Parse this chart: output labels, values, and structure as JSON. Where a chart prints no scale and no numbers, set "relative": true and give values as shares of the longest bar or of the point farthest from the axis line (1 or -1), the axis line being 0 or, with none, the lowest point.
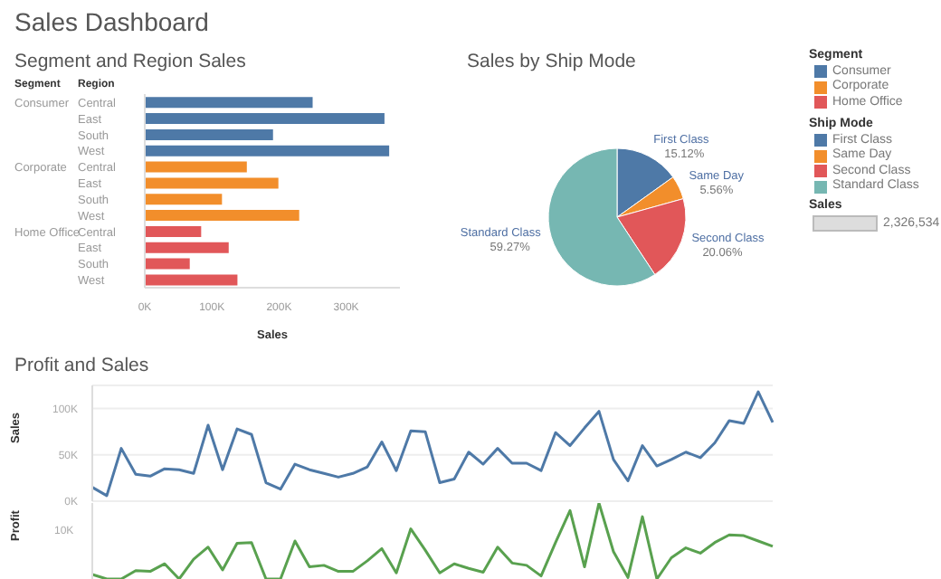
{
  "chart_data": [
    {
      "type": "other",
      "title": "Sales Dashboard"
    },
    {
      "type": "bar",
      "orientation": "horizontal",
      "stacked": true,
      "title": "Segment and Region Sales",
      "xlabel": "Sales",
      "legend": "right",
      "legend_title": "Segment",
      "annotations": [
        "Segment",
        "Region"
      ],
      "categories": [
        "Central",
        "East",
        "South",
        "West",
        "Central",
        "East",
        "South",
        "West",
        "Central",
        "East",
        "South",
        "West"
      ],
      "series": [
        {
          "name": "Consumer",
          "color": "#4e79a7",
          "values": [
            250000,
            357000,
            191000,
            364000,
            null,
            null,
            null,
            null,
            null,
            null,
            null,
            null
          ]
        },
        {
          "name": "Corporate",
          "color": "#f28e2b",
          "values": [
            null,
            null,
            null,
            null,
            152000,
            199000,
            115000,
            230000,
            null,
            null,
            null,
            null
          ]
        },
        {
          "name": "Home Office",
          "color": "#e15759",
          "values": [
            null,
            null,
            null,
            null,
            null,
            null,
            null,
            null,
            84000,
            125000,
            67000,
            138000
          ]
        }
      ],
      "xlim": [
        0,
        380000
      ],
      "xticks": [
        {
          "value": 0,
          "label": "0K"
        },
        {
          "value": 100000,
          "label": "100K"
        },
        {
          "value": 200000,
          "label": "200K"
        },
        {
          "value": 300000,
          "label": "300K"
        }
      ]
    },
    {
      "type": "pie",
      "title": "Sales by Ship Mode",
      "legend": "right",
      "legend_title": "Ship Mode",
      "categories": [
        "First Class",
        "Same Day",
        "Second Class",
        "Standard Class"
      ],
      "values": [
        15.12,
        5.56,
        20.06,
        59.27
      ],
      "colors": [
        "#4e79a7",
        "#f28e2b",
        "#e15759",
        "#76b7b2"
      ],
      "value_labels": [
        "15.12%",
        "5.56%",
        "20.06%",
        "59.27%"
      ]
    },
    {
      "type": "other",
      "title": "Sales",
      "annotations": [
        "2,326,534"
      ]
    },
    {
      "type": "line",
      "title": "Profit and Sales",
      "ylabel": "Sales",
      "tick_labels": "y",
      "grid": "y",
      "categories": [
        null,
        null,
        null,
        null,
        null,
        null,
        null,
        null,
        null,
        null,
        null,
        null,
        null,
        null,
        null,
        null,
        null,
        null,
        null,
        null,
        null,
        null,
        null,
        null,
        null,
        null,
        null,
        null,
        null,
        null,
        null,
        null,
        null,
        null,
        null,
        null,
        null,
        null,
        null,
        null,
        null,
        null,
        null,
        null,
        null,
        null,
        null,
        null
      ],
      "series": [
        {
          "color": "#4e79a7",
          "values": [
            15000,
            6000,
            57000,
            29000,
            27000,
            35000,
            34000,
            30000,
            82000,
            34000,
            78000,
            72000,
            20000,
            13000,
            40000,
            34000,
            30000,
            26000,
            30000,
            37000,
            64000,
            33000,
            76000,
            75000,
            20000,
            24000,
            53000,
            40000,
            57000,
            41000,
            41000,
            33000,
            74000,
            60000,
            79000,
            97000,
            45000,
            22000,
            60000,
            38000,
            45000,
            53000,
            47000,
            63000,
            87000,
            84000,
            118000,
            85000
          ]
        }
      ],
      "ylim": [
        0,
        125000
      ],
      "yticks": [
        {
          "value": 0,
          "label": "0K"
        },
        {
          "value": 50000,
          "label": "50K"
        },
        {
          "value": 100000,
          "label": "100K"
        }
      ]
    },
    {
      "type": "line",
      "ylabel": "Profit",
      "relative": true,
      "tick_labels": false,
      "annotations": [
        "10K"
      ],
      "categories": [
        null,
        null,
        null,
        null,
        null,
        null,
        null,
        null,
        null,
        null,
        null,
        null,
        null,
        null,
        null,
        null,
        null,
        null,
        null,
        null,
        null,
        null,
        null,
        null,
        null,
        null,
        null,
        null,
        null,
        null,
        null,
        null,
        null,
        null,
        null,
        null,
        null,
        null,
        null,
        null,
        null,
        null,
        null,
        null,
        null,
        null,
        null,
        null
      ],
      "series": [
        {
          "color": "#59a14f",
          "values": [
            0.06,
            0,
            0,
            0.11,
            0.1,
            0.2,
            0,
            0.26,
            0.42,
            0.12,
            0.47,
            0.48,
            0,
            0,
            0.5,
            0.16,
            0.18,
            0.1,
            0.1,
            0.24,
            0.4,
            0.08,
            0.66,
            0.38,
            0.08,
            0.2,
            0.14,
            0.09,
            0.42,
            0.21,
            0.18,
            0.04,
            0.48,
            0.9,
            0.16,
            1,
            0.36,
            0.02,
            0.82,
            0,
            0.28,
            0.41,
            0.34,
            0.48,
            0.58,
            0.57,
            0.5,
            0.43
          ]
        }
      ]
    }
  ]
}
